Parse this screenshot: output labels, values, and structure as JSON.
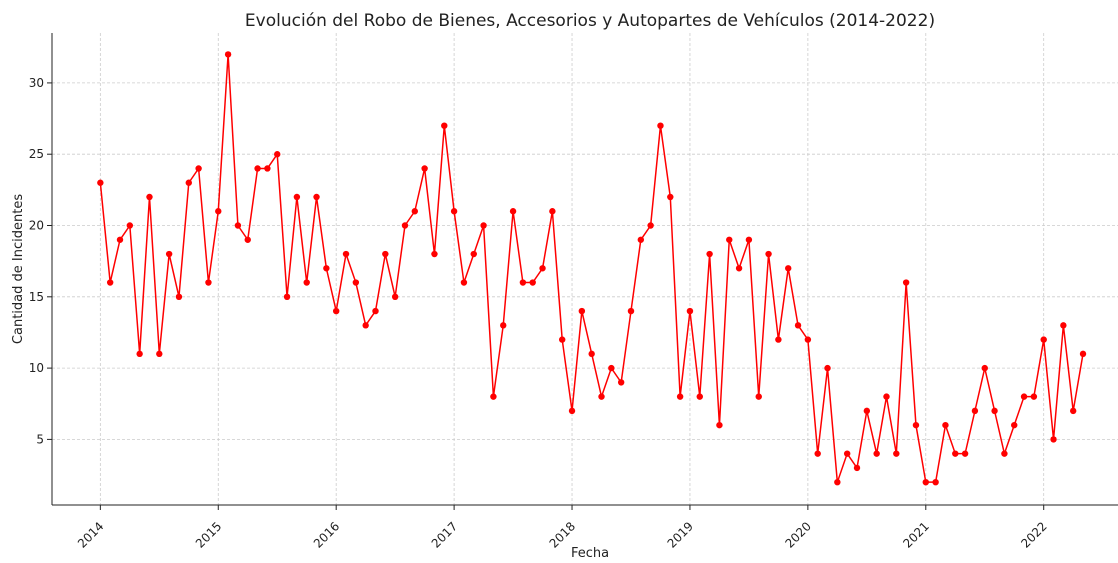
{
  "chart_data": {
    "type": "line",
    "title": "Evolución del Robo de Bienes, Accesorios y Autopartes de Vehículos (2014-2022)",
    "xlabel": "Fecha",
    "ylabel": "Cantidad de Incidentes",
    "color": "#ff0000",
    "x": [
      "2014-01",
      "2014-02",
      "2014-03",
      "2014-04",
      "2014-05",
      "2014-06",
      "2014-07",
      "2014-08",
      "2014-09",
      "2014-10",
      "2014-11",
      "2014-12",
      "2015-01",
      "2015-02",
      "2015-03",
      "2015-04",
      "2015-05",
      "2015-06",
      "2015-07",
      "2015-08",
      "2015-09",
      "2015-10",
      "2015-11",
      "2015-12",
      "2016-01",
      "2016-02",
      "2016-03",
      "2016-04",
      "2016-05",
      "2016-06",
      "2016-07",
      "2016-08",
      "2016-09",
      "2016-10",
      "2016-11",
      "2016-12",
      "2017-01",
      "2017-02",
      "2017-03",
      "2017-04",
      "2017-05",
      "2017-06",
      "2017-07",
      "2017-08",
      "2017-09",
      "2017-10",
      "2017-11",
      "2017-12",
      "2018-01",
      "2018-02",
      "2018-03",
      "2018-04",
      "2018-05",
      "2018-06",
      "2018-07",
      "2018-08",
      "2018-09",
      "2018-10",
      "2018-11",
      "2018-12",
      "2019-01",
      "2019-02",
      "2019-03",
      "2019-04",
      "2019-05",
      "2019-06",
      "2019-07",
      "2019-08",
      "2019-09",
      "2019-10",
      "2019-11",
      "2019-12",
      "2020-01",
      "2020-02",
      "2020-03",
      "2020-04",
      "2020-05",
      "2020-06",
      "2020-07",
      "2020-08",
      "2020-09",
      "2020-10",
      "2020-11",
      "2020-12",
      "2021-01",
      "2021-02",
      "2021-03",
      "2021-04",
      "2021-05",
      "2021-06",
      "2021-07",
      "2021-08",
      "2021-09",
      "2021-10",
      "2021-11",
      "2021-12",
      "2022-01",
      "2022-02",
      "2022-03",
      "2022-04",
      "2022-05"
    ],
    "values": [
      23,
      16,
      19,
      20,
      11,
      22,
      11,
      18,
      15,
      23,
      24,
      16,
      21,
      32,
      20,
      19,
      24,
      24,
      25,
      15,
      22,
      16,
      22,
      17,
      14,
      18,
      16,
      13,
      14,
      18,
      15,
      20,
      21,
      24,
      18,
      27,
      21,
      16,
      18,
      20,
      8,
      13,
      21,
      16,
      16,
      17,
      21,
      12,
      7,
      14,
      11,
      8,
      10,
      9,
      14,
      19,
      20,
      27,
      22,
      8,
      14,
      8,
      18,
      6,
      19,
      17,
      19,
      8,
      18,
      12,
      17,
      13,
      12,
      4,
      10,
      2,
      4,
      3,
      7,
      4,
      8,
      4,
      16,
      6,
      2,
      2,
      6,
      4,
      4,
      7,
      10,
      7,
      4,
      6,
      8,
      8,
      12,
      5,
      13,
      7,
      11
    ],
    "xlim": [
      2013.59,
      2022.63
    ],
    "xticks": [
      2014,
      2015,
      2016,
      2017,
      2018,
      2019,
      2020,
      2021,
      2022
    ],
    "ylim": [
      0.4,
      33.5
    ],
    "yticks": [
      5,
      10,
      15,
      20,
      25,
      30
    ],
    "grid": true
  }
}
